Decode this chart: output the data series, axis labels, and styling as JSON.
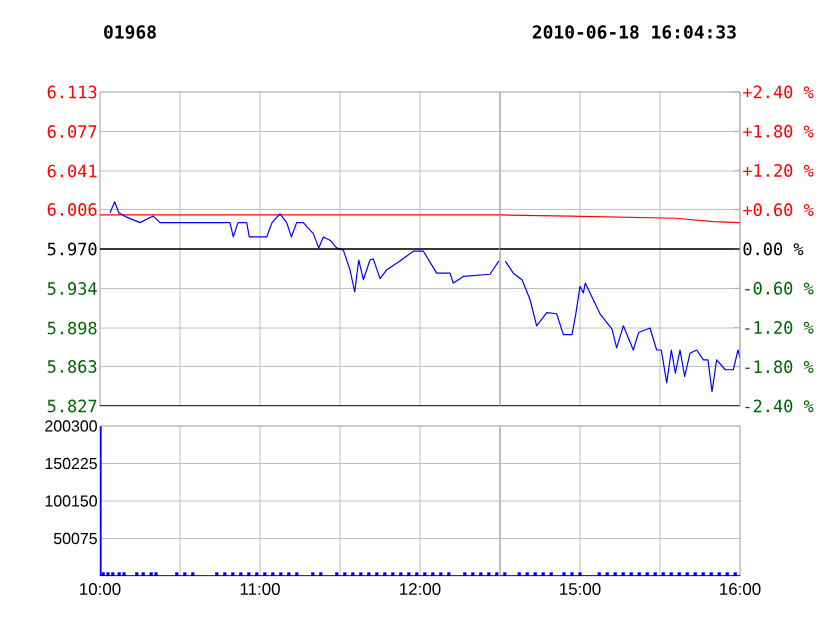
{
  "chart_data": [
    {
      "type": "line",
      "title": "01968",
      "xlim": [
        10,
        12.5
      ],
      "xticks": [
        10,
        10.5,
        11,
        11.5,
        12,
        12.5
      ],
      "ylim": [
        5.827,
        6.113
      ],
      "yticks": [
        {
          "value": 5.827,
          "label": "5.827"
        },
        {
          "value": 5.863,
          "label": "5.863"
        },
        {
          "value": 5.898,
          "label": "5.898"
        },
        {
          "value": 5.934,
          "label": "5.934"
        },
        {
          "value": 5.97,
          "label": "5.970"
        },
        {
          "value": 6.006,
          "label": "6.006"
        },
        {
          "value": 6.041,
          "label": "6.041"
        },
        {
          "value": 6.077,
          "label": "6.077"
        },
        {
          "value": 6.113,
          "label": "6.113"
        }
      ],
      "tick_labels": "y",
      "grid": true,
      "ref_lines": [
        {
          "axis": "y",
          "value": 5.97,
          "color": "#000000"
        }
      ],
      "series": [
        {
          "color": "#ff0000",
          "x": [
            10,
            12.5
          ],
          "values": [
            6.001,
            6.001
          ]
        },
        {
          "color": "#0000ff",
          "x": [
            10.0625,
            10.092,
            10.117,
            10.167,
            10.25,
            10.333,
            10.375,
            10.8125,
            10.833,
            10.8625,
            10.917,
            10.933,
            11.042,
            11.075,
            11.125,
            11.167,
            11.196,
            11.229,
            11.271,
            11.333,
            11.367,
            11.396,
            11.4375,
            11.479,
            11.521,
            11.5625,
            11.592,
            11.617,
            11.646,
            11.6875,
            11.708,
            11.75,
            11.792,
            11.875,
            11.958,
            12.021,
            12.104,
            12.1875,
            12.208,
            12.271,
            12.4375,
            12.492
          ],
          "values": [
            6.003,
            6.013,
            6.003,
            5.999,
            5.994,
            6.0,
            5.994,
            5.994,
            5.981,
            5.994,
            5.994,
            5.981,
            5.981,
            5.994,
            6.002,
            5.994,
            5.981,
            5.994,
            5.994,
            5.984,
            5.971,
            5.981,
            5.978,
            5.971,
            5.969,
            5.951,
            5.931,
            5.96,
            5.942,
            5.96,
            5.961,
            5.943,
            5.951,
            5.959,
            5.968,
            5.968,
            5.948,
            5.948,
            5.939,
            5.945,
            5.947,
            5.959
          ]
        }
      ]
    },
    {
      "type": "line",
      "subtitle": "2010-06-18 16:04:33",
      "xlim": [
        14.5,
        16
      ],
      "xticks": [
        14.5,
        15,
        15.5,
        16
      ],
      "ylim": [
        5.827,
        6.113
      ],
      "yticks": [
        5.827,
        5.863,
        5.898,
        5.934,
        5.97,
        6.006,
        6.041,
        6.077,
        6.113
      ],
      "y2lim": [
        -2.4,
        2.4
      ],
      "y2ticks": [
        {
          "value": -2.4,
          "label": "-2.40 %"
        },
        {
          "value": -1.8,
          "label": "-1.80 %"
        },
        {
          "value": -1.2,
          "label": "-1.20 %"
        },
        {
          "value": -0.6,
          "label": "-0.60 %"
        },
        {
          "value": 0,
          "label": "0.00 %"
        },
        {
          "value": 0.6,
          "label": "+0.60 %"
        },
        {
          "value": 1.2,
          "label": "+1.20 %"
        },
        {
          "value": 1.8,
          "label": "+1.80 %"
        },
        {
          "value": 2.4,
          "label": "+2.40 %"
        }
      ],
      "tick_labels": false,
      "grid": true,
      "ref_lines": [
        {
          "axis": "y",
          "value": 5.97,
          "color": "#000000"
        }
      ],
      "series": [
        {
          "color": "#ff0000",
          "x": [
            14.5,
            14.933,
            15.6,
            15.833,
            16
          ],
          "values": [
            6.001,
            6.0,
            5.998,
            5.995,
            5.994
          ]
        },
        {
          "color": "#0000ff",
          "x": [
            14.533,
            14.583,
            14.6375,
            14.6875,
            14.729,
            14.792,
            14.854,
            14.896,
            14.95,
            14.975,
            15.0,
            15.021,
            15.033,
            15.0625,
            15.125,
            15.2,
            15.229,
            15.271,
            15.333,
            15.367,
            15.4375,
            15.479,
            15.508,
            15.542,
            15.571,
            15.596,
            15.625,
            15.654,
            15.6875,
            15.729,
            15.771,
            15.8,
            15.825,
            15.854,
            15.908,
            15.958,
            15.9875,
            16
          ],
          "values": [
            5.959,
            5.948,
            5.942,
            5.924,
            5.9,
            5.912,
            5.911,
            5.892,
            5.892,
            5.912,
            5.936,
            5.93,
            5.939,
            5.93,
            5.911,
            5.897,
            5.88,
            5.9,
            5.878,
            5.894,
            5.898,
            5.878,
            5.878,
            5.848,
            5.878,
            5.857,
            5.878,
            5.854,
            5.875,
            5.878,
            5.869,
            5.869,
            5.84,
            5.869,
            5.86,
            5.86,
            5.878,
            5.871
          ]
        }
      ]
    },
    {
      "type": "bar",
      "xlim": [
        10,
        12.5
      ],
      "xticks": [
        {
          "value": 10,
          "label": "10:00"
        },
        {
          "value": 10.5,
          "label": null
        },
        {
          "value": 11,
          "label": "11:00"
        },
        {
          "value": 11.5,
          "label": null
        },
        {
          "value": 12,
          "label": "12:00"
        },
        {
          "value": 12.5,
          "label": null
        }
      ],
      "ylim": [
        0,
        200300
      ],
      "yticks": [
        50075,
        100150,
        150225,
        200300
      ],
      "grid": true,
      "color": "#0000ff",
      "x": [
        10.0,
        10.02,
        10.05,
        10.08,
        10.12,
        10.15,
        10.23,
        10.27,
        10.32,
        10.35,
        10.48,
        10.53,
        10.58,
        10.73,
        10.78,
        10.83,
        10.88,
        10.93,
        10.98,
        11.03,
        11.08,
        11.13,
        11.18,
        11.23,
        11.33,
        11.38,
        11.48,
        11.53,
        11.58,
        11.63,
        11.68,
        11.73,
        11.78,
        11.83,
        11.88,
        11.93,
        11.98,
        12.03,
        12.08,
        12.13,
        12.18,
        12.28,
        12.33,
        12.38,
        12.43,
        12.48
      ],
      "values": [
        200000,
        5000,
        5000,
        5000,
        5000,
        5000,
        5000,
        5000,
        5000,
        5000,
        5000,
        5000,
        5000,
        5000,
        5000,
        5000,
        5000,
        5000,
        5000,
        5000,
        5000,
        5000,
        5000,
        5000,
        5000,
        5000,
        5000,
        5000,
        5000,
        5000,
        5000,
        5000,
        5000,
        5000,
        5000,
        5000,
        5000,
        5000,
        5000,
        5000,
        5000,
        5000,
        5000,
        5000,
        5000,
        5000
      ]
    },
    {
      "type": "bar",
      "xlim": [
        14.5,
        16
      ],
      "xticks": [
        {
          "value": 14.5,
          "label": null
        },
        {
          "value": 15,
          "label": "15:00"
        },
        {
          "value": 15.5,
          "label": null
        },
        {
          "value": 16,
          "label": "16:00"
        }
      ],
      "ylim": [
        0,
        200300
      ],
      "yticks": [
        50075,
        100150,
        150225,
        200300
      ],
      "grid": true,
      "tick_labels": "x",
      "color": "#0000ff",
      "x": [
        14.53,
        14.62,
        14.67,
        14.72,
        14.77,
        14.82,
        14.9,
        14.95,
        15.0,
        15.12,
        15.17,
        15.22,
        15.27,
        15.32,
        15.37,
        15.42,
        15.47,
        15.52,
        15.57,
        15.62,
        15.67,
        15.72,
        15.77,
        15.82,
        15.87,
        15.92,
        15.97
      ],
      "values": [
        5000,
        5000,
        5000,
        5000,
        5000,
        5000,
        5000,
        5000,
        5000,
        5000,
        5000,
        5000,
        5000,
        5000,
        5000,
        5000,
        5000,
        5000,
        5000,
        5000,
        5000,
        5000,
        5000,
        5000,
        5000,
        5000,
        5000
      ]
    }
  ]
}
